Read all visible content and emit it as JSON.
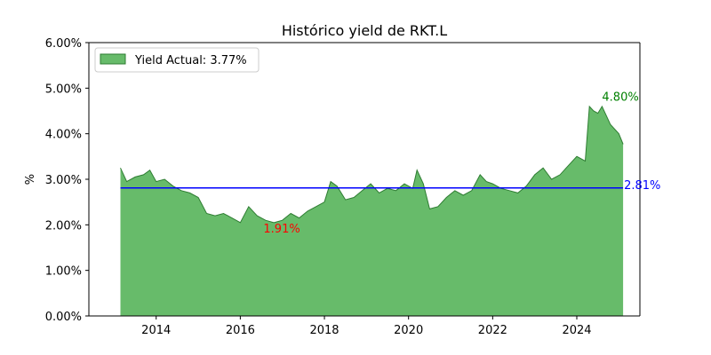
{
  "chart_data": {
    "type": "area",
    "title": "Histórico yield de RKT.L",
    "xlabel": "",
    "ylabel": "%",
    "xlim": [
      2012.4,
      2025.5
    ],
    "ylim": [
      0,
      6
    ],
    "x_ticks": [
      2014,
      2016,
      2018,
      2020,
      2022,
      2024
    ],
    "x_tick_labels": [
      "2014",
      "2016",
      "2018",
      "2020",
      "2022",
      "2024"
    ],
    "y_ticks": [
      0,
      1,
      2,
      3,
      4,
      5,
      6
    ],
    "y_tick_labels": [
      "0.00%",
      "1.00%",
      "2.00%",
      "3.00%",
      "4.00%",
      "5.00%",
      "6.00%"
    ],
    "grid": false,
    "legend_position": "upper-left",
    "series": [
      {
        "name": "Yield Actual: 3.77%",
        "color": "#4caf50",
        "x": [
          2013.15,
          2013.3,
          2013.5,
          2013.7,
          2013.85,
          2014.0,
          2014.2,
          2014.4,
          2014.6,
          2014.8,
          2015.0,
          2015.2,
          2015.4,
          2015.6,
          2015.8,
          2016.0,
          2016.2,
          2016.4,
          2016.6,
          2016.8,
          2017.0,
          2017.2,
          2017.4,
          2017.6,
          2017.8,
          2018.0,
          2018.15,
          2018.3,
          2018.5,
          2018.7,
          2018.9,
          2019.1,
          2019.3,
          2019.5,
          2019.7,
          2019.9,
          2020.1,
          2020.2,
          2020.35,
          2020.5,
          2020.7,
          2020.9,
          2021.1,
          2021.3,
          2021.5,
          2021.7,
          2021.85,
          2022.0,
          2022.2,
          2022.4,
          2022.6,
          2022.8,
          2023.0,
          2023.2,
          2023.4,
          2023.6,
          2023.8,
          2024.0,
          2024.2,
          2024.3,
          2024.4,
          2024.5,
          2024.6,
          2024.7,
          2024.8,
          2024.9,
          2025.0,
          2025.1
        ],
        "values": [
          3.25,
          2.95,
          3.05,
          3.1,
          3.2,
          2.95,
          3.0,
          2.85,
          2.75,
          2.7,
          2.6,
          2.25,
          2.2,
          2.25,
          2.15,
          2.05,
          2.4,
          2.2,
          2.1,
          2.05,
          2.1,
          2.25,
          2.15,
          2.3,
          2.4,
          2.5,
          2.95,
          2.85,
          2.55,
          2.6,
          2.75,
          2.9,
          2.7,
          2.8,
          2.75,
          2.9,
          2.8,
          3.2,
          2.9,
          2.35,
          2.4,
          2.6,
          2.75,
          2.65,
          2.75,
          3.1,
          2.95,
          2.9,
          2.8,
          2.75,
          2.7,
          2.85,
          3.1,
          3.25,
          3.0,
          3.1,
          3.3,
          3.5,
          3.4,
          4.6,
          4.5,
          4.45,
          4.6,
          4.4,
          4.2,
          4.1,
          4.0,
          3.77
        ]
      }
    ],
    "reference_line": {
      "value": 2.81,
      "label": "2.81%",
      "color": "#0000ff"
    },
    "annotations": [
      {
        "text": "4.80%",
        "x": 2024.6,
        "y": 4.8,
        "color": "#008000"
      },
      {
        "text": "1.91%",
        "x": 2016.55,
        "y": 1.91,
        "color": "#ff0000"
      }
    ]
  }
}
